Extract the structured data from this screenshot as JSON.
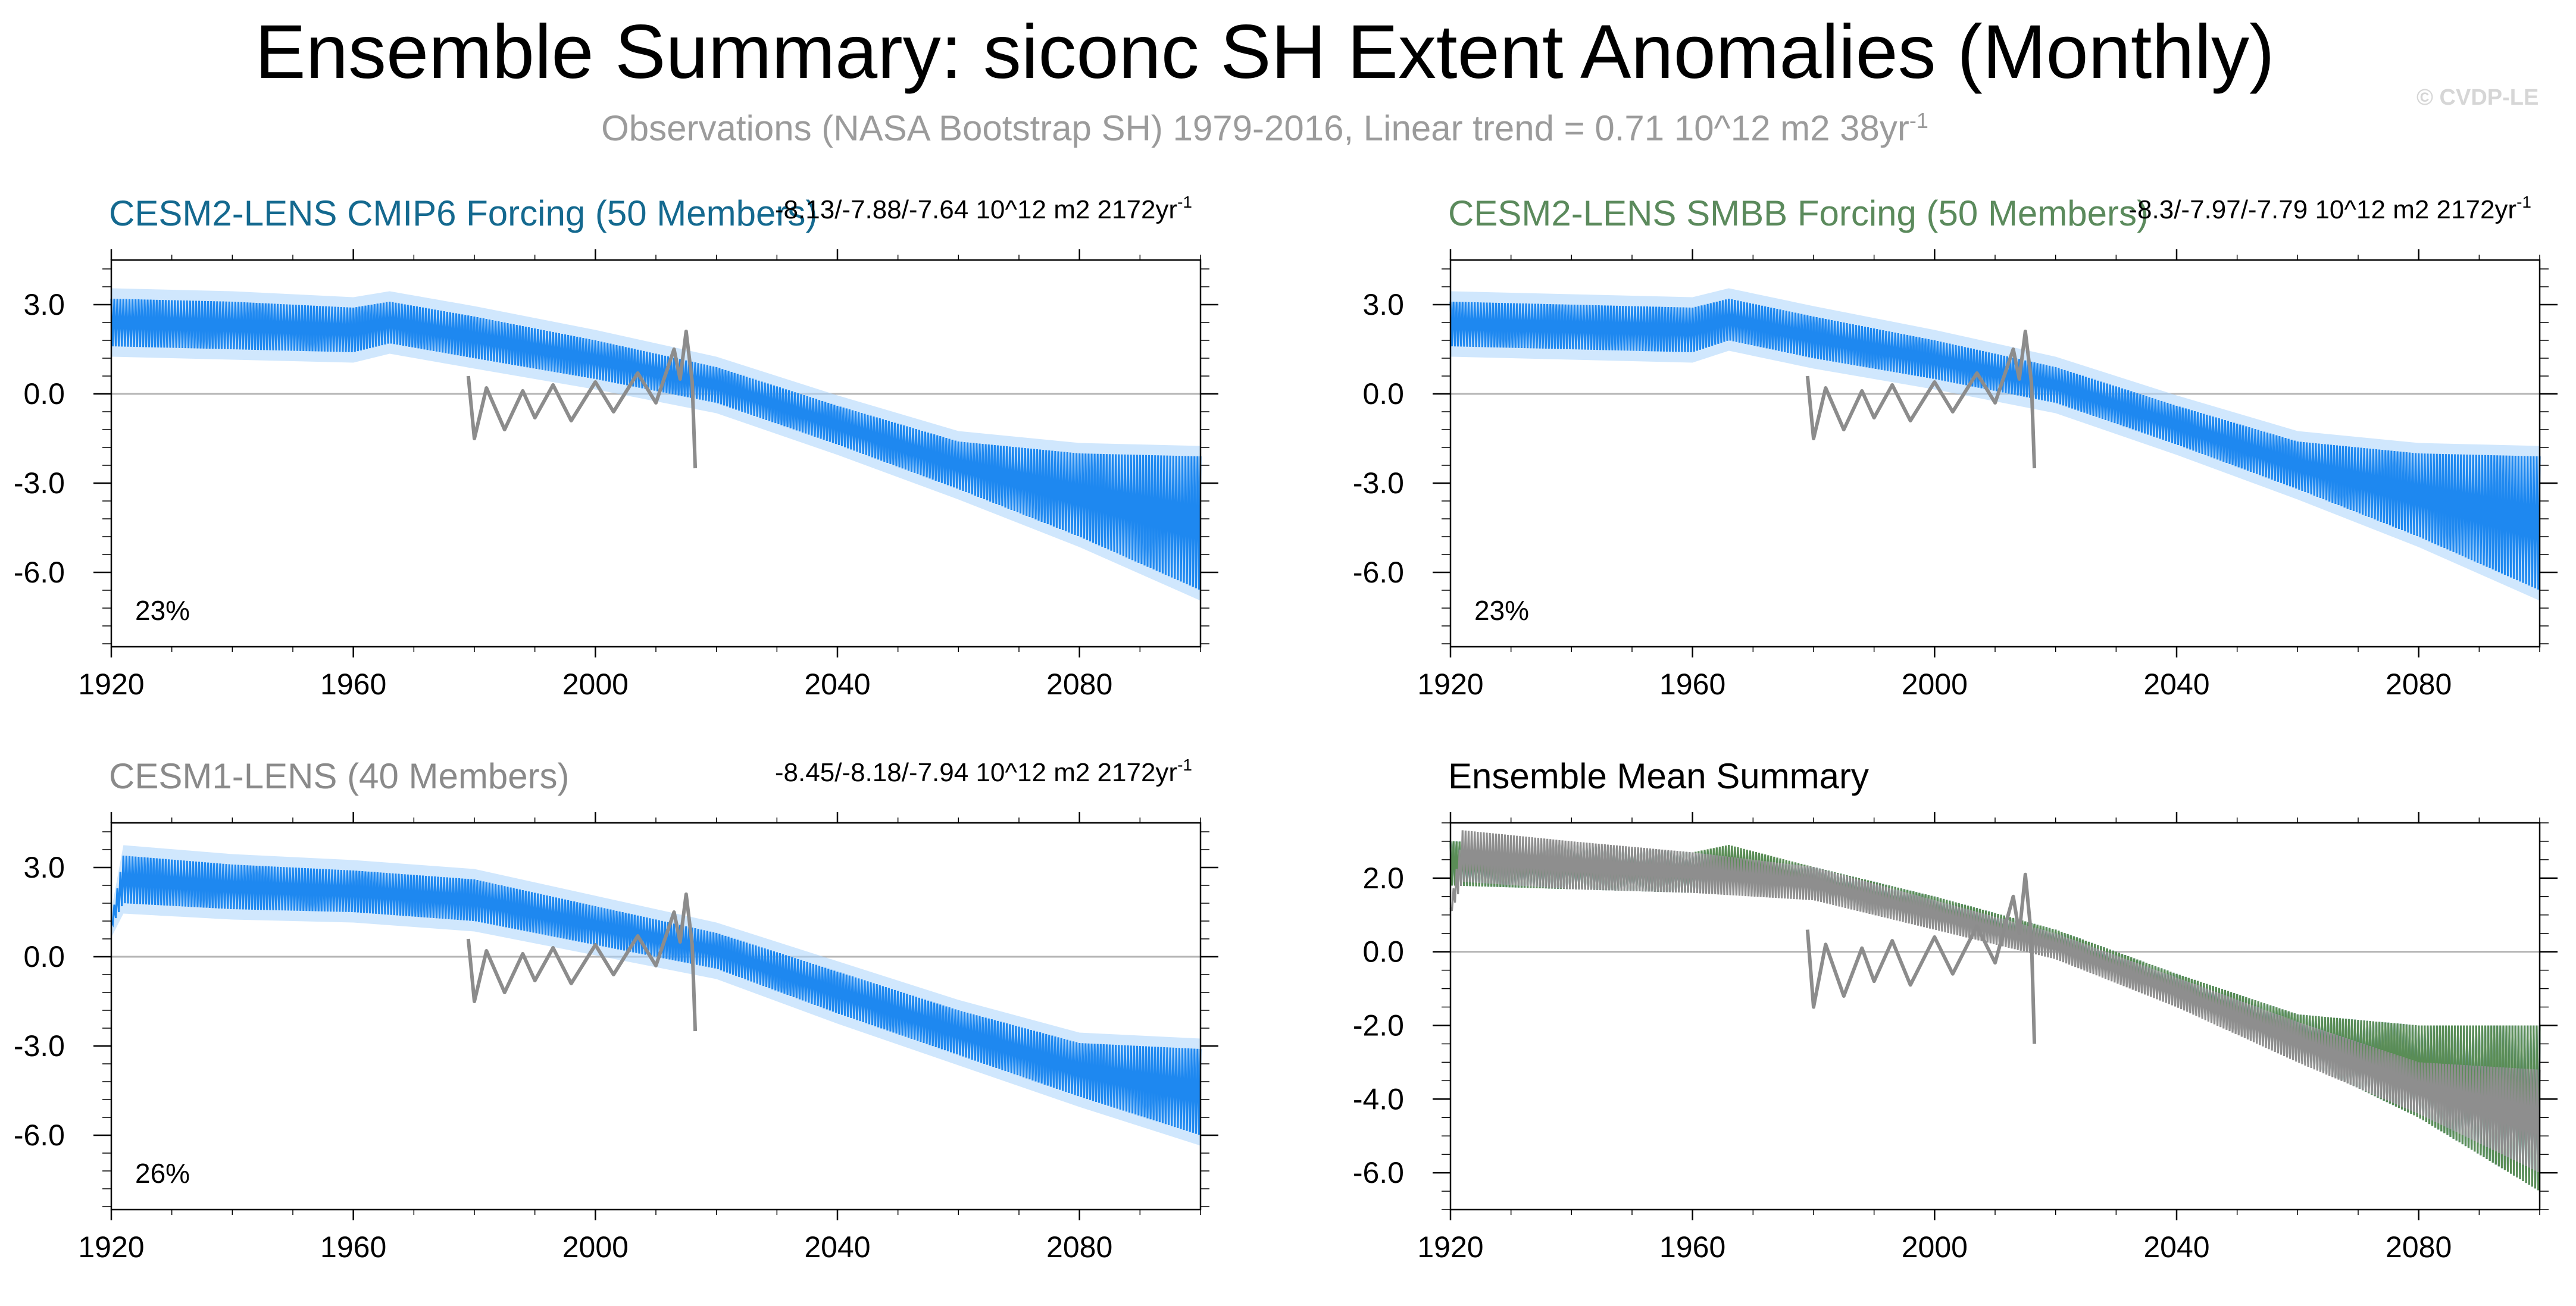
{
  "header": {
    "title": "Ensemble Summary: siconc SH Extent Anomalies (Monthly)",
    "subtitle_main": "Observations (NASA Bootstrap SH) 1979-2016, Linear trend = 0.71 10^12 m2 38yr",
    "subtitle_sup": "-1",
    "watermark": "© CVDP-LE"
  },
  "colors": {
    "cmip6_title": "#14698f",
    "smbb_title": "#5b8a5c",
    "cesm1_title": "#8a8a8a",
    "ensemble_band": "#1e88f0",
    "ensemble_band_light": "#a9d3fb",
    "observations": "#8c8c8c",
    "mean_cmip6": "#14608a",
    "mean_smbb": "#5a8d56",
    "mean_cesm1": "#8e8e8e",
    "axis": "#000000",
    "zero_line": "#b5b5b5"
  },
  "chart_data": [
    {
      "type": "area",
      "panel": "top-left",
      "title": "CESM2-LENS CMIP6 Forcing (50 Members)",
      "trend_label": "-8.13/-7.88/-7.64 10^12 m2 2172yr",
      "trend_sup": "-1",
      "percent_label": "23%",
      "xlim": [
        1920,
        2100
      ],
      "ylim": [
        -8.5,
        4.5
      ],
      "xticks": [
        1920,
        1960,
        2000,
        2040,
        2080
      ],
      "xtick_labels": [
        "1920",
        "1960",
        "2000",
        "2040",
        "2080"
      ],
      "yticks": [
        3.0,
        0.0,
        -3.0,
        -6.0
      ],
      "ytick_labels": [
        "3.0",
        "0.0",
        "-3.0",
        "-6.0"
      ],
      "series": [
        {
          "name": "ensemble_max",
          "x": [
            1920,
            1940,
            1960,
            1966,
            1980,
            2000,
            2020,
            2040,
            2060,
            2080,
            2100
          ],
          "values": [
            3.2,
            3.1,
            2.9,
            3.1,
            2.6,
            1.8,
            0.9,
            -0.4,
            -1.6,
            -2.0,
            -2.1
          ]
        },
        {
          "name": "ensemble_min",
          "x": [
            1920,
            1940,
            1960,
            1966,
            1980,
            2000,
            2020,
            2040,
            2060,
            2080,
            2100
          ],
          "values": [
            1.6,
            1.5,
            1.4,
            1.7,
            1.2,
            0.5,
            -0.3,
            -1.7,
            -3.2,
            -4.8,
            -6.6
          ]
        },
        {
          "name": "observations",
          "x": [
            1979,
            1980,
            1982,
            1985,
            1988,
            1990,
            1993,
            1996,
            2000,
            2003,
            2007,
            2010,
            2013,
            2014,
            2015,
            2016,
            2016.5
          ],
          "values": [
            0.6,
            -1.5,
            0.2,
            -1.2,
            0.1,
            -0.8,
            0.3,
            -0.9,
            0.4,
            -0.6,
            0.7,
            -0.3,
            1.5,
            0.5,
            2.1,
            0.4,
            -2.5
          ]
        }
      ]
    },
    {
      "type": "area",
      "panel": "top-right",
      "title": "CESM2-LENS SMBB Forcing (50 Members)",
      "trend_label": "-8.3/-7.97/-7.79 10^12 m2 2172yr",
      "trend_sup": "-1",
      "percent_label": "23%",
      "xlim": [
        1920,
        2100
      ],
      "ylim": [
        -8.5,
        4.5
      ],
      "xticks": [
        1920,
        1960,
        2000,
        2040,
        2080
      ],
      "xtick_labels": [
        "1920",
        "1960",
        "2000",
        "2040",
        "2080"
      ],
      "yticks": [
        3.0,
        0.0,
        -3.0,
        -6.0
      ],
      "ytick_labels": [
        "3.0",
        "0.0",
        "-3.0",
        "-6.0"
      ],
      "series": [
        {
          "name": "ensemble_max",
          "x": [
            1920,
            1940,
            1960,
            1966,
            1980,
            2000,
            2020,
            2040,
            2060,
            2080,
            2100
          ],
          "values": [
            3.1,
            3.0,
            2.9,
            3.2,
            2.6,
            1.8,
            0.9,
            -0.4,
            -1.6,
            -2.0,
            -2.1
          ]
        },
        {
          "name": "ensemble_min",
          "x": [
            1920,
            1940,
            1960,
            1966,
            1980,
            2000,
            2020,
            2040,
            2060,
            2080,
            2100
          ],
          "values": [
            1.6,
            1.5,
            1.4,
            1.8,
            1.2,
            0.5,
            -0.3,
            -1.7,
            -3.2,
            -4.8,
            -6.6
          ]
        },
        {
          "name": "observations",
          "x": [
            1979,
            1980,
            1982,
            1985,
            1988,
            1990,
            1993,
            1996,
            2000,
            2003,
            2007,
            2010,
            2013,
            2014,
            2015,
            2016,
            2016.5
          ],
          "values": [
            0.6,
            -1.5,
            0.2,
            -1.2,
            0.1,
            -0.8,
            0.3,
            -0.9,
            0.4,
            -0.6,
            0.7,
            -0.3,
            1.5,
            0.5,
            2.1,
            0.4,
            -2.5
          ]
        }
      ]
    },
    {
      "type": "area",
      "panel": "bottom-left",
      "title": "CESM1-LENS (40 Members)",
      "trend_label": "-8.45/-8.18/-7.94 10^12 m2 2172yr",
      "trend_sup": "-1",
      "percent_label": "26%",
      "xlim": [
        1920,
        2100
      ],
      "ylim": [
        -8.5,
        4.5
      ],
      "xticks": [
        1920,
        1960,
        2000,
        2040,
        2080
      ],
      "xtick_labels": [
        "1920",
        "1960",
        "2000",
        "2040",
        "2080"
      ],
      "yticks": [
        3.0,
        0.0,
        -3.0,
        -6.0
      ],
      "ytick_labels": [
        "3.0",
        "0.0",
        "-3.0",
        "-6.0"
      ],
      "series": [
        {
          "name": "ensemble_max",
          "x": [
            1920,
            1922,
            1940,
            1960,
            1980,
            2000,
            2020,
            2040,
            2060,
            2080,
            2100
          ],
          "values": [
            1.2,
            3.4,
            3.1,
            2.9,
            2.6,
            1.7,
            0.8,
            -0.5,
            -1.8,
            -2.9,
            -3.1
          ]
        },
        {
          "name": "ensemble_min",
          "x": [
            1920,
            1922,
            1940,
            1960,
            1980,
            2000,
            2020,
            2040,
            2060,
            2080,
            2100
          ],
          "values": [
            1.0,
            1.8,
            1.6,
            1.5,
            1.2,
            0.4,
            -0.4,
            -1.9,
            -3.3,
            -4.7,
            -6.0
          ]
        },
        {
          "name": "observations",
          "x": [
            1979,
            1980,
            1982,
            1985,
            1988,
            1990,
            1993,
            1996,
            2000,
            2003,
            2007,
            2010,
            2013,
            2014,
            2015,
            2016,
            2016.5
          ],
          "values": [
            0.6,
            -1.5,
            0.2,
            -1.2,
            0.1,
            -0.8,
            0.3,
            -0.9,
            0.4,
            -0.6,
            0.7,
            -0.3,
            1.5,
            0.5,
            2.1,
            0.4,
            -2.5
          ]
        }
      ]
    },
    {
      "type": "line",
      "panel": "bottom-right",
      "title": "Ensemble Mean Summary",
      "xlim": [
        1920,
        2100
      ],
      "ylim": [
        -7.0,
        3.5
      ],
      "xticks": [
        1920,
        1960,
        2000,
        2040,
        2080
      ],
      "xtick_labels": [
        "1920",
        "1960",
        "2000",
        "2040",
        "2080"
      ],
      "yticks": [
        2.0,
        0.0,
        -2.0,
        -4.0,
        -6.0
      ],
      "ytick_labels": [
        "2.0",
        "0.0",
        "-2.0",
        "-4.0",
        "-6.0"
      ],
      "series": [
        {
          "name": "CESM2-LENS CMIP6 max",
          "x": [
            1920,
            1940,
            1960,
            1966,
            1980,
            2000,
            2020,
            2040,
            2060,
            2080,
            2100
          ],
          "values": [
            3.0,
            2.9,
            2.7,
            2.8,
            2.3,
            1.5,
            0.6,
            -0.6,
            -1.7,
            -2.0,
            -2.0
          ]
        },
        {
          "name": "CESM2-LENS CMIP6 min",
          "x": [
            1920,
            1940,
            1960,
            1966,
            1980,
            2000,
            2020,
            2040,
            2060,
            2080,
            2100
          ],
          "values": [
            1.8,
            1.7,
            1.6,
            1.9,
            1.5,
            0.7,
            -0.1,
            -1.4,
            -2.9,
            -4.5,
            -6.5
          ]
        },
        {
          "name": "CESM2-LENS SMBB max",
          "x": [
            1920,
            1940,
            1960,
            1966,
            1980,
            2000,
            2020,
            2040,
            2060,
            2080,
            2100
          ],
          "values": [
            3.0,
            2.9,
            2.7,
            2.9,
            2.3,
            1.5,
            0.6,
            -0.6,
            -1.7,
            -2.0,
            -2.0
          ]
        },
        {
          "name": "CESM2-LENS SMBB min",
          "x": [
            1920,
            1940,
            1960,
            1966,
            1980,
            2000,
            2020,
            2040,
            2060,
            2080,
            2100
          ],
          "values": [
            1.8,
            1.7,
            1.6,
            2.0,
            1.5,
            0.7,
            -0.1,
            -1.4,
            -2.9,
            -4.5,
            -6.5
          ]
        },
        {
          "name": "CESM1-LENS max",
          "x": [
            1920,
            1922,
            1940,
            1960,
            1980,
            2000,
            2020,
            2040,
            2060,
            2080,
            2100
          ],
          "values": [
            1.2,
            3.3,
            3.0,
            2.7,
            2.3,
            1.4,
            0.5,
            -0.7,
            -1.9,
            -3.0,
            -3.2
          ]
        },
        {
          "name": "CESM1-LENS min",
          "x": [
            1920,
            1922,
            1940,
            1960,
            1980,
            2000,
            2020,
            2040,
            2060,
            2080,
            2100
          ],
          "values": [
            1.0,
            1.9,
            1.7,
            1.6,
            1.4,
            0.6,
            -0.2,
            -1.5,
            -3.0,
            -4.4,
            -6.0
          ]
        },
        {
          "name": "observations",
          "x": [
            1979,
            1980,
            1982,
            1985,
            1988,
            1990,
            1993,
            1996,
            2000,
            2003,
            2007,
            2010,
            2013,
            2014,
            2015,
            2016,
            2016.5
          ],
          "values": [
            0.6,
            -1.5,
            0.2,
            -1.2,
            0.1,
            -0.8,
            0.3,
            -0.9,
            0.4,
            -0.6,
            0.7,
            -0.3,
            1.5,
            0.5,
            2.1,
            0.4,
            -2.5
          ]
        }
      ]
    }
  ]
}
